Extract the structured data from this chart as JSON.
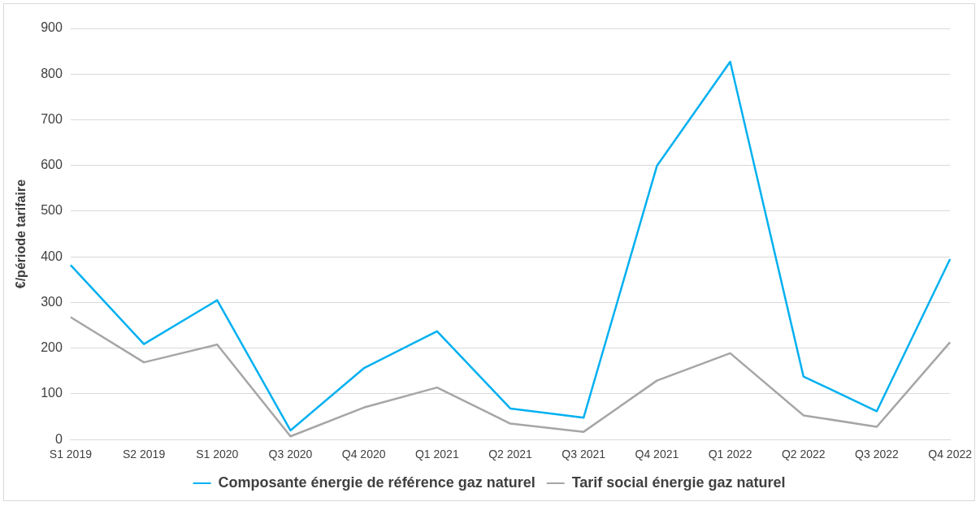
{
  "chart_data": {
    "type": "line",
    "ylabel": "€/période tarifaire",
    "categories": [
      "S1 2019",
      "S2 2019",
      "S1 2020",
      "Q3 2020",
      "Q4 2020",
      "Q1 2021",
      "Q2 2021",
      "Q3 2021",
      "Q4 2021",
      "Q1 2022",
      "Q2 2022",
      "Q3 2022",
      "Q4 2022"
    ],
    "series": [
      {
        "name": "Composante énergie de référence gaz naturel",
        "color": "#00b0f0",
        "values": [
          382,
          209,
          305,
          20,
          156,
          237,
          68,
          48,
          599,
          827,
          138,
          62,
          395
        ]
      },
      {
        "name": "Tarif social énergie gaz naturel",
        "color": "#a6a6a6",
        "values": [
          268,
          169,
          208,
          7,
          70,
          114,
          35,
          17,
          129,
          189,
          53,
          28,
          213
        ]
      }
    ],
    "ylim": [
      0,
      900
    ],
    "yticks": [
      0,
      100,
      200,
      300,
      400,
      500,
      600,
      700,
      800,
      900
    ],
    "grid": "y",
    "legend": "bottom",
    "marker": "none",
    "line_style": "solid"
  }
}
